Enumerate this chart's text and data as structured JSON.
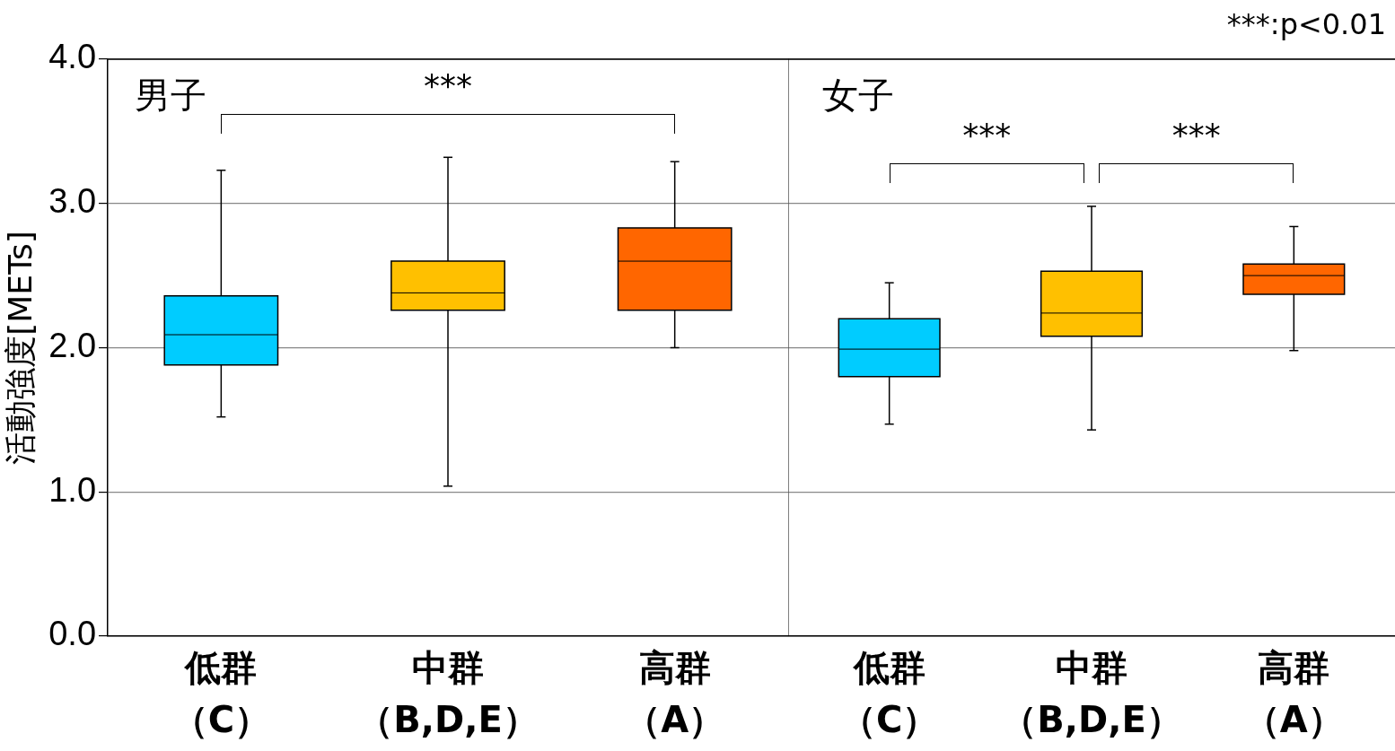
{
  "chart_data": [
    {
      "type": "box",
      "title": "男子",
      "ylabel": "活動強度[METs]",
      "categories": [
        "低群（C）",
        "中群（B,D,E）",
        "高群（A）"
      ],
      "colors": [
        "#00ccff",
        "#ffc000",
        "#ff6600"
      ],
      "boxes": [
        {
          "low": 1.52,
          "q1": 1.88,
          "median": 2.09,
          "q3": 2.36,
          "high": 3.23
        },
        {
          "low": 1.04,
          "q1": 2.26,
          "median": 2.38,
          "q3": 2.6,
          "high": 3.32
        },
        {
          "low": 2.0,
          "q1": 2.26,
          "median": 2.6,
          "q3": 2.83,
          "high": 3.29
        }
      ],
      "ylim": [
        0,
        4
      ],
      "yticks": [
        {
          "value": 0,
          "label": "0.0"
        },
        {
          "value": 1,
          "label": "1.0"
        },
        {
          "value": 2,
          "label": "2.0"
        },
        {
          "value": 3,
          "label": "3.0"
        },
        {
          "value": 4,
          "label": "4.0"
        }
      ],
      "grid": "y",
      "annotations": [
        "***"
      ]
    },
    {
      "type": "box",
      "title": "女子",
      "subtitle": "***:p<0.01",
      "categories": [
        "低群（C）",
        "中群（B,D,E）",
        "高群（A）"
      ],
      "colors": [
        "#00ccff",
        "#ffc000",
        "#ff6600"
      ],
      "boxes": [
        {
          "low": 1.47,
          "q1": 1.8,
          "median": 1.99,
          "q3": 2.2,
          "high": 2.45
        },
        {
          "low": 1.43,
          "q1": 2.08,
          "median": 2.24,
          "q3": 2.53,
          "high": 2.98
        },
        {
          "low": 1.98,
          "q1": 2.37,
          "median": 2.5,
          "q3": 2.58,
          "high": 2.84
        }
      ],
      "ylim": [
        0,
        4
      ],
      "yticks": [
        {
          "value": 0,
          "label": null
        },
        {
          "value": 1,
          "label": null
        },
        {
          "value": 2,
          "label": null
        },
        {
          "value": 3,
          "label": null
        },
        {
          "value": 4,
          "label": null
        }
      ],
      "grid": "y",
      "tick_labels": "x",
      "annotations": [
        "***",
        "***"
      ]
    }
  ]
}
